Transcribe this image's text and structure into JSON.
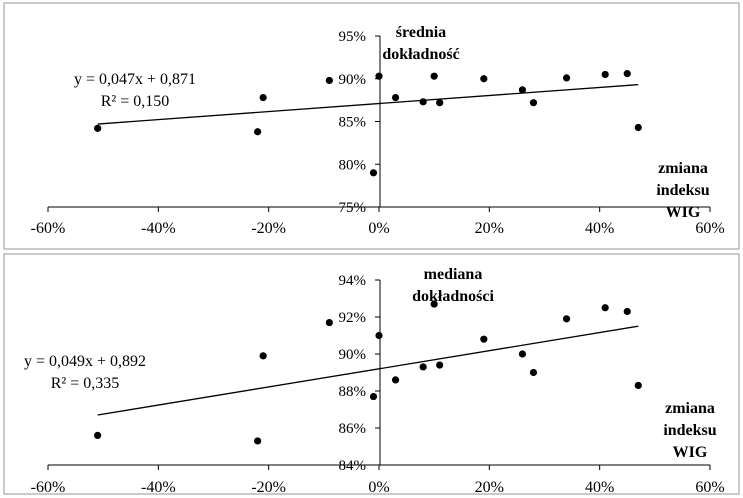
{
  "chart_data": [
    {
      "type": "scatter",
      "title": "",
      "xlabel": "zmiana indeksu WIG",
      "ylabel": "średnia dokładność",
      "xlabel_lines": [
        "zmiana",
        "indeksu",
        "WIG"
      ],
      "ylabel_lines": [
        "średnia",
        "dokładność"
      ],
      "xlim": [
        -0.6,
        0.6
      ],
      "ylim": [
        0.75,
        0.95
      ],
      "x_ticks": [
        -0.6,
        -0.4,
        -0.2,
        0,
        0.2,
        0.4,
        0.6
      ],
      "x_tick_labels": [
        "-60%",
        "-40%",
        "-20%",
        "0%",
        "20%",
        "40%",
        "60%"
      ],
      "y_ticks": [
        0.75,
        0.8,
        0.85,
        0.9,
        0.95
      ],
      "y_tick_labels": [
        "75%",
        "80%",
        "85%",
        "90%",
        "95%"
      ],
      "grid": false,
      "trendline": {
        "slope": 0.047,
        "intercept": 0.871,
        "x_range": [
          -0.51,
          0.47
        ]
      },
      "equation": "y = 0,047x + 0,871",
      "r_squared": "R² = 0,150",
      "points": [
        {
          "x": -0.51,
          "y": 0.842
        },
        {
          "x": -0.22,
          "y": 0.838
        },
        {
          "x": -0.21,
          "y": 0.878
        },
        {
          "x": -0.09,
          "y": 0.898
        },
        {
          "x": -0.01,
          "y": 0.79
        },
        {
          "x": 0.0,
          "y": 0.903
        },
        {
          "x": 0.03,
          "y": 0.878
        },
        {
          "x": 0.08,
          "y": 0.873
        },
        {
          "x": 0.1,
          "y": 0.903
        },
        {
          "x": 0.11,
          "y": 0.872
        },
        {
          "x": 0.19,
          "y": 0.9
        },
        {
          "x": 0.26,
          "y": 0.887
        },
        {
          "x": 0.28,
          "y": 0.872
        },
        {
          "x": 0.34,
          "y": 0.901
        },
        {
          "x": 0.41,
          "y": 0.905
        },
        {
          "x": 0.45,
          "y": 0.906
        },
        {
          "x": 0.47,
          "y": 0.843
        }
      ]
    },
    {
      "type": "scatter",
      "title": "",
      "xlabel": "zmiana indeksu WIG",
      "ylabel": "mediana dokładności",
      "xlabel_lines": [
        "zmiana",
        "indeksu",
        "WIG"
      ],
      "ylabel_lines": [
        "mediana",
        "dokładności"
      ],
      "xlim": [
        -0.6,
        0.6
      ],
      "ylim": [
        0.84,
        0.94
      ],
      "x_ticks": [
        -0.6,
        -0.4,
        -0.2,
        0,
        0.2,
        0.4,
        0.6
      ],
      "x_tick_labels": [
        "-60%",
        "-40%",
        "-20%",
        "0%",
        "20%",
        "40%",
        "60%"
      ],
      "y_ticks": [
        0.84,
        0.86,
        0.88,
        0.9,
        0.92,
        0.94
      ],
      "y_tick_labels": [
        "84%",
        "86%",
        "88%",
        "90%",
        "92%",
        "94%"
      ],
      "grid": false,
      "trendline": {
        "slope": 0.049,
        "intercept": 0.892,
        "x_range": [
          -0.51,
          0.47
        ]
      },
      "equation": "y = 0,049x + 0,892",
      "r_squared": "R² = 0,335",
      "points": [
        {
          "x": -0.51,
          "y": 0.856
        },
        {
          "x": -0.22,
          "y": 0.853
        },
        {
          "x": -0.21,
          "y": 0.899
        },
        {
          "x": -0.09,
          "y": 0.917
        },
        {
          "x": -0.01,
          "y": 0.877
        },
        {
          "x": 0.0,
          "y": 0.91
        },
        {
          "x": 0.03,
          "y": 0.886
        },
        {
          "x": 0.08,
          "y": 0.893
        },
        {
          "x": 0.1,
          "y": 0.927
        },
        {
          "x": 0.11,
          "y": 0.894
        },
        {
          "x": 0.19,
          "y": 0.908
        },
        {
          "x": 0.26,
          "y": 0.9
        },
        {
          "x": 0.28,
          "y": 0.89
        },
        {
          "x": 0.34,
          "y": 0.919
        },
        {
          "x": 0.41,
          "y": 0.925
        },
        {
          "x": 0.45,
          "y": 0.923
        },
        {
          "x": 0.47,
          "y": 0.883
        }
      ]
    }
  ]
}
